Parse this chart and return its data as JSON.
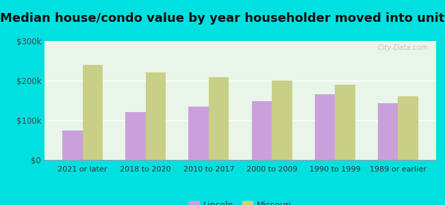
{
  "title": "Median house/condo value by year householder moved into unit",
  "categories": [
    "2021 or later",
    "2018 to 2020",
    "2010 to 2017",
    "2000 to 2009",
    "1990 to 1999",
    "1989 or earlier"
  ],
  "lincoln_values": [
    75000,
    120000,
    135000,
    148000,
    165000,
    143000
  ],
  "missouri_values": [
    240000,
    220000,
    208000,
    200000,
    190000,
    160000
  ],
  "lincoln_color": "#c9a0dc",
  "missouri_color": "#c8cf87",
  "background_top": "#e8f5e8",
  "background_bottom": "#d8f0d8",
  "outer_background": "#00e0e0",
  "ylim": [
    0,
    300000
  ],
  "yticks": [
    0,
    100000,
    200000,
    300000
  ],
  "ytick_labels": [
    "$0",
    "$100k",
    "$200k",
    "$300k"
  ],
  "legend_labels": [
    "Lincoln",
    "Missouri"
  ],
  "title_fontsize": 13,
  "watermark": "City-Data.com"
}
